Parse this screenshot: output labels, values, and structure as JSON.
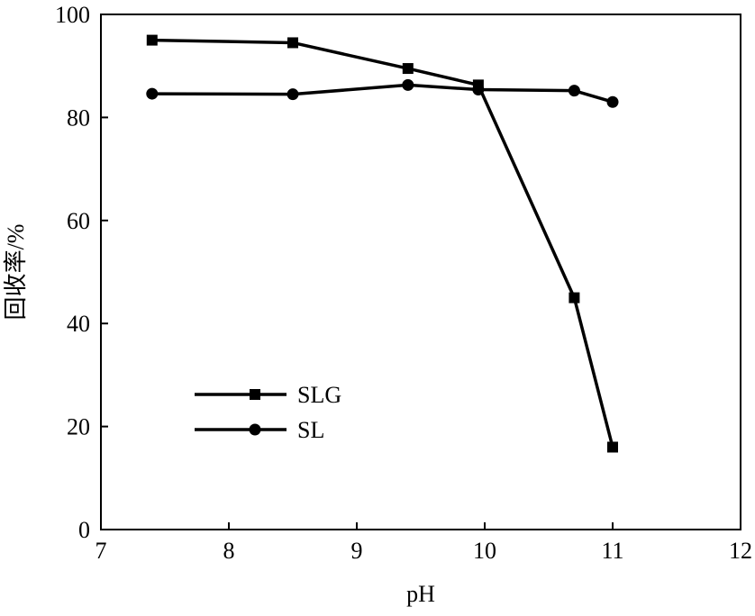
{
  "chart_data": {
    "type": "line",
    "xlabel": "pH",
    "ylabel": "回收率/%",
    "xlim": [
      7,
      12
    ],
    "ylim": [
      0,
      100
    ],
    "xticks": [
      "7",
      "8",
      "9",
      "10",
      "11",
      "12"
    ],
    "yticks": [
      "0",
      "20",
      "40",
      "60",
      "80",
      "100"
    ],
    "grid": false,
    "legend_position": "lower-left",
    "series": [
      {
        "name": "SLG",
        "marker": "square",
        "x": [
          7.4,
          8.5,
          9.4,
          9.95,
          10.7,
          11.0
        ],
        "y": [
          95.0,
          94.5,
          89.5,
          86.3,
          45.0,
          16.0
        ]
      },
      {
        "name": "SL",
        "marker": "circle",
        "x": [
          7.4,
          8.5,
          9.4,
          9.95,
          10.7,
          11.0
        ],
        "y": [
          84.6,
          84.5,
          86.3,
          85.4,
          85.2,
          83.0
        ]
      }
    ],
    "colors": {
      "line": "#000000",
      "axis": "#000000"
    }
  }
}
